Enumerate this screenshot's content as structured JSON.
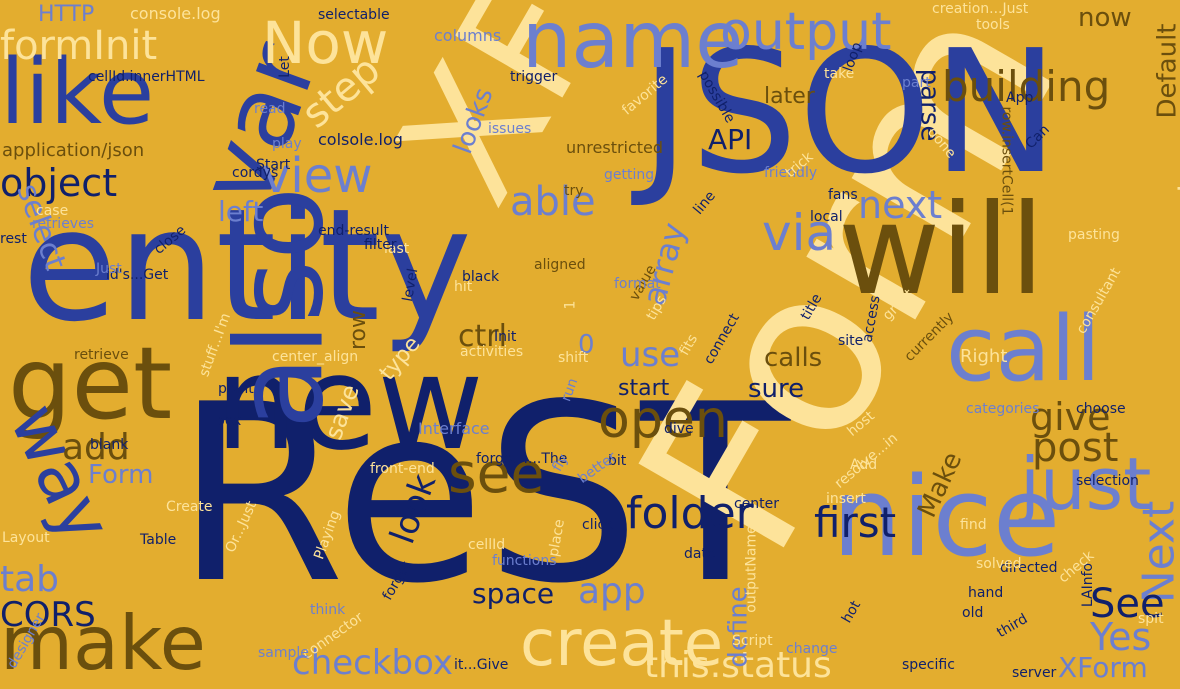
{
  "cloud": {
    "background": "#e3ad2f",
    "palette": {
      "navy": "#10206b",
      "blue": "#2b3f9e",
      "periwinkle": "#6c7fcf",
      "cream": "#fde39a",
      "brown": "#6b4f0d"
    },
    "words": [
      {
        "text": "ReST",
        "color": "navy"
      },
      {
        "text": "Form",
        "color": "cream"
      },
      {
        "text": "entity",
        "color": "blue"
      },
      {
        "text": "JSON",
        "color": "blue"
      },
      {
        "text": "XF",
        "color": "cream"
      },
      {
        "text": "new",
        "color": "navy"
      },
      {
        "text": "will",
        "color": "brown"
      },
      {
        "text": "nice",
        "color": "periwinkle"
      },
      {
        "text": "also",
        "color": "blue"
      },
      {
        "text": "get",
        "color": "brown"
      },
      {
        "text": "call",
        "color": "periwinkle"
      },
      {
        "text": "var",
        "color": "blue"
      },
      {
        "text": "like",
        "color": "blue"
      },
      {
        "text": "name",
        "color": "periwinkle"
      },
      {
        "text": "create",
        "color": "cream"
      },
      {
        "text": "make",
        "color": "brown"
      },
      {
        "text": "way",
        "color": "blue"
      },
      {
        "text": "just",
        "color": "periwinkle"
      },
      {
        "text": "output",
        "color": "periwinkle"
      },
      {
        "text": "Now",
        "color": "cream"
      },
      {
        "text": "view",
        "color": "periwinkle"
      },
      {
        "text": "see",
        "color": "brown"
      },
      {
        "text": "open",
        "color": "brown"
      },
      {
        "text": "folder",
        "color": "navy"
      },
      {
        "text": "object",
        "color": "navy"
      },
      {
        "text": "formInit",
        "color": "cream"
      },
      {
        "text": "building",
        "color": "brown"
      },
      {
        "text": "step",
        "color": "cream"
      },
      {
        "text": "able",
        "color": "periwinkle"
      },
      {
        "text": "via",
        "color": "periwinkle"
      },
      {
        "text": "next",
        "color": "periwinkle"
      },
      {
        "text": "component",
        "color": "cream"
      },
      {
        "text": "give",
        "color": "brown"
      },
      {
        "text": "post",
        "color": "brown"
      },
      {
        "text": "first",
        "color": "navy"
      },
      {
        "text": "Next",
        "color": "periwinkle"
      },
      {
        "text": "See",
        "color": "navy"
      },
      {
        "text": "Yes",
        "color": "periwinkle"
      },
      {
        "text": "this.status",
        "color": "cream"
      },
      {
        "text": "checkbox",
        "color": "periwinkle"
      },
      {
        "text": "XForm",
        "color": "periwinkle"
      },
      {
        "text": "app",
        "color": "periwinkle"
      },
      {
        "text": "space",
        "color": "navy"
      },
      {
        "text": "CORS",
        "color": "navy"
      },
      {
        "text": "tab",
        "color": "periwinkle"
      },
      {
        "text": "add",
        "color": "brown"
      },
      {
        "text": "look",
        "color": "navy"
      },
      {
        "text": "use",
        "color": "periwinkle"
      },
      {
        "text": "select",
        "color": "periwinkle"
      },
      {
        "text": "left",
        "color": "periwinkle"
      },
      {
        "text": "looks",
        "color": "periwinkle"
      },
      {
        "text": "parse",
        "color": "navy"
      },
      {
        "text": "API",
        "color": "navy"
      },
      {
        "text": "Default",
        "color": "brown"
      },
      {
        "text": "now",
        "color": "brown"
      },
      {
        "text": "later",
        "color": "brown"
      },
      {
        "text": "calls",
        "color": "brown"
      },
      {
        "text": "sure",
        "color": "navy"
      },
      {
        "text": "start",
        "color": "navy"
      },
      {
        "text": "ctrl",
        "color": "brown"
      },
      {
        "text": "array",
        "color": "periwinkle"
      },
      {
        "text": "row",
        "color": "brown"
      },
      {
        "text": "0",
        "color": "periwinkle"
      },
      {
        "text": "type",
        "color": "cream"
      },
      {
        "text": "save",
        "color": "cream"
      },
      {
        "text": "Form",
        "color": "periwinkle"
      },
      {
        "text": "define",
        "color": "periwinkle"
      },
      {
        "text": "Make",
        "color": "brown"
      },
      {
        "text": "Right",
        "color": "cream"
      },
      {
        "text": "HTTP",
        "color": "periwinkle"
      },
      {
        "text": "console.log",
        "color": "cream"
      },
      {
        "text": "cellId.innerHTML",
        "color": "navy"
      },
      {
        "text": "application/json",
        "color": "brown"
      },
      {
        "text": "colsole.log",
        "color": "navy"
      },
      {
        "text": "cordys",
        "color": "navy"
      },
      {
        "text": "unrestricted",
        "color": "brown"
      },
      {
        "text": "creation...Just",
        "color": "cream"
      },
      {
        "text": "tools",
        "color": "cream"
      },
      {
        "text": "columns",
        "color": "periwinkle"
      },
      {
        "text": "selectable",
        "color": "navy"
      },
      {
        "text": "row.insertCell(1",
        "color": "brown"
      },
      {
        "text": "LAInfo",
        "color": "navy"
      },
      {
        "text": "front-end",
        "color": "cream"
      },
      {
        "text": "forgot!....The",
        "color": "navy"
      },
      {
        "text": "center_align",
        "color": "cream"
      },
      {
        "text": "Interface",
        "color": "periwinkle"
      },
      {
        "text": "end-result",
        "color": "navy"
      },
      {
        "text": "id's...Get",
        "color": "navy"
      },
      {
        "text": "outputName",
        "color": "cream"
      },
      {
        "text": "resolve...in",
        "color": "cream"
      },
      {
        "text": "stuff...I'm",
        "color": "cream"
      },
      {
        "text": "it...Give",
        "color": "navy"
      },
      {
        "text": "Or...Just",
        "color": "cream"
      },
      {
        "text": "trigger",
        "color": "navy"
      },
      {
        "text": "categories",
        "color": "periwinkle"
      },
      {
        "text": "choose",
        "color": "navy"
      },
      {
        "text": "selection",
        "color": "navy"
      },
      {
        "text": "directed",
        "color": "navy"
      },
      {
        "text": "server",
        "color": "navy"
      },
      {
        "text": "connector",
        "color": "cream"
      },
      {
        "text": "Playing",
        "color": "cream"
      },
      {
        "text": "Table",
        "color": "navy"
      },
      {
        "text": "Layout",
        "color": "cream"
      },
      {
        "text": "Create",
        "color": "cream"
      },
      {
        "text": "blank",
        "color": "navy"
      },
      {
        "text": "retrieve",
        "color": "brown"
      },
      {
        "text": "designer",
        "color": "periwinkle"
      },
      {
        "text": "retrieves",
        "color": "periwinkle"
      },
      {
        "text": "rest",
        "color": "navy"
      },
      {
        "text": "case",
        "color": "cream"
      },
      {
        "text": "Just",
        "color": "periwinkle"
      },
      {
        "text": "point",
        "color": "navy"
      },
      {
        "text": "box",
        "color": "navy"
      },
      {
        "text": "Init",
        "color": "navy"
      },
      {
        "text": "activities",
        "color": "cream"
      },
      {
        "text": "hit",
        "color": "cream"
      },
      {
        "text": "black",
        "color": "navy"
      },
      {
        "text": "level",
        "color": "navy"
      },
      {
        "text": "aligned",
        "color": "brown"
      },
      {
        "text": "last",
        "color": "cream"
      },
      {
        "text": "filter",
        "color": "navy"
      },
      {
        "text": "close",
        "color": "navy"
      },
      {
        "text": "play",
        "color": "periwinkle"
      },
      {
        "text": "Start",
        "color": "navy"
      },
      {
        "text": "Let",
        "color": "navy"
      },
      {
        "text": "read",
        "color": "periwinkle"
      },
      {
        "text": "issues",
        "color": "periwinkle"
      },
      {
        "text": "getting",
        "color": "periwinkle"
      },
      {
        "text": "try",
        "color": "brown"
      },
      {
        "text": "line",
        "color": "navy"
      },
      {
        "text": "friendly",
        "color": "periwinkle"
      },
      {
        "text": "trick",
        "color": "cream"
      },
      {
        "text": "fans",
        "color": "navy"
      },
      {
        "text": "local",
        "color": "navy"
      },
      {
        "text": "favorite",
        "color": "cream"
      },
      {
        "text": "possible",
        "color": "navy"
      },
      {
        "text": "take",
        "color": "cream"
      },
      {
        "text": "loop",
        "color": "navy"
      },
      {
        "text": "part",
        "color": "periwinkle"
      },
      {
        "text": "done",
        "color": "cream"
      },
      {
        "text": "App",
        "color": "navy"
      },
      {
        "text": "Can",
        "color": "navy"
      },
      {
        "text": "pasting",
        "color": "cream"
      },
      {
        "text": "consultant",
        "color": "cream"
      },
      {
        "text": "title",
        "color": "navy"
      },
      {
        "text": "access",
        "color": "navy"
      },
      {
        "text": "great",
        "color": "cream"
      },
      {
        "text": "currently",
        "color": "brown"
      },
      {
        "text": "site",
        "color": "navy"
      },
      {
        "text": "fits",
        "color": "cream"
      },
      {
        "text": "connect",
        "color": "navy"
      },
      {
        "text": "tips",
        "color": "cream"
      },
      {
        "text": "value",
        "color": "brown"
      },
      {
        "text": "format",
        "color": "periwinkle"
      },
      {
        "text": "1",
        "color": "cream"
      },
      {
        "text": "shift",
        "color": "cream"
      },
      {
        "text": "run",
        "color": "periwinkle"
      },
      {
        "text": "dive",
        "color": "navy"
      },
      {
        "text": "host",
        "color": "cream"
      },
      {
        "text": "Add",
        "color": "cream"
      },
      {
        "text": "bit",
        "color": "navy"
      },
      {
        "text": "better",
        "color": "periwinkle"
      },
      {
        "text": "fly",
        "color": "periwinkle"
      },
      {
        "text": "center",
        "color": "navy"
      },
      {
        "text": "insert",
        "color": "cream"
      },
      {
        "text": "find",
        "color": "cream"
      },
      {
        "text": "click",
        "color": "navy"
      },
      {
        "text": "cellId",
        "color": "cream"
      },
      {
        "text": "functions",
        "color": "periwinkle"
      },
      {
        "text": "place",
        "color": "cream"
      },
      {
        "text": "list",
        "color": "navy"
      },
      {
        "text": "date",
        "color": "navy"
      },
      {
        "text": "hand",
        "color": "navy"
      },
      {
        "text": "solved",
        "color": "cream"
      },
      {
        "text": "check",
        "color": "cream"
      },
      {
        "text": "spit",
        "color": "cream"
      },
      {
        "text": "third",
        "color": "navy"
      },
      {
        "text": "old",
        "color": "navy"
      },
      {
        "text": "specific",
        "color": "navy"
      },
      {
        "text": "change",
        "color": "periwinkle"
      },
      {
        "text": "hot",
        "color": "navy"
      },
      {
        "text": "Script",
        "color": "cream"
      },
      {
        "text": "forget",
        "color": "navy"
      },
      {
        "text": "think",
        "color": "periwinkle"
      },
      {
        "text": "sample",
        "color": "periwinkle"
      }
    ]
  }
}
